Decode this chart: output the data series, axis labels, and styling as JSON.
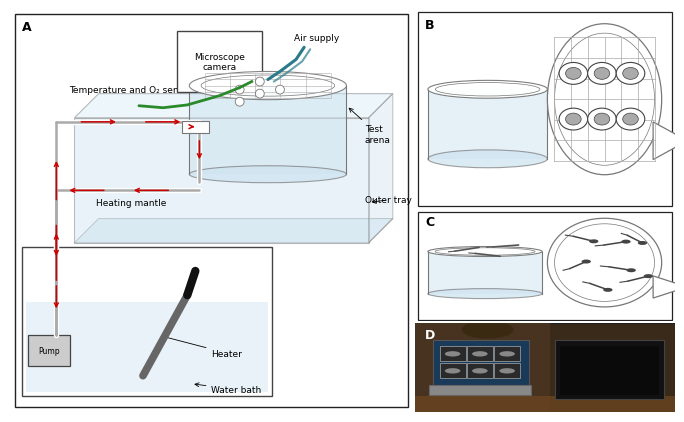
{
  "panel_A_label": "A",
  "panel_B_label": "B",
  "panel_C_label": "C",
  "panel_D_label": "D",
  "labels": {
    "microscope_camera": "Microscope\ncamera",
    "temperature_o2": "Temperature and O₂ sensor",
    "air_supply": "Air supply",
    "test_arena": "Test\narena",
    "heating_mantle": "Heating mantle",
    "outer_tray": "Outer tray",
    "pump": "Pump",
    "heater": "Heater",
    "water_bath": "Water bath"
  },
  "colors": {
    "light_blue": "#cde3f0",
    "lighter_blue": "#ddeef8",
    "border": "#777777",
    "dark_border": "#444444",
    "red_arrow": "#cc0000",
    "green_sensor": "#2a8a2a",
    "teal_air": "#2a7a8a",
    "background": "#ffffff",
    "panel_border": "#222222",
    "tube_gray": "#aaaaaa",
    "pump_box": "#cccccc",
    "heater_gray": "#666666",
    "heater_tip": "#111111",
    "grid_line": "#aaaaaa",
    "embryo_outer": "#666666",
    "embryo_inner": "#999999"
  },
  "font_sizes": {
    "panel_label": 9,
    "annotation": 6.5,
    "pump_label": 5.5
  }
}
